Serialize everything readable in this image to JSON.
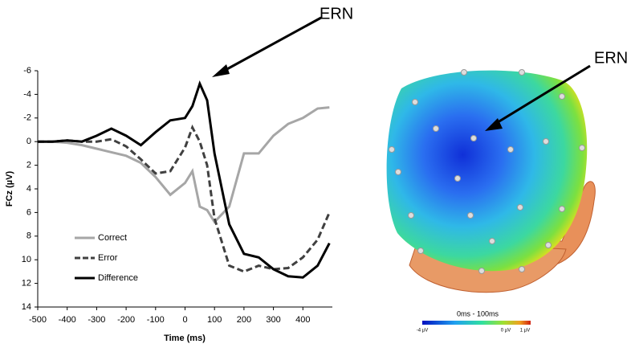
{
  "chart_data": {
    "type": "line",
    "annotation": "ERN",
    "x_label": "Time (ms)",
    "y_label": "FCz (µV)",
    "x": [
      -500,
      -450,
      -400,
      -350,
      -300,
      -250,
      -200,
      -150,
      -100,
      -50,
      0,
      25,
      50,
      75,
      100,
      150,
      200,
      250,
      300,
      350,
      400,
      450,
      490
    ],
    "series": [
      {
        "name": "Correct",
        "color": "#a6a6a6",
        "dash": false,
        "values": [
          0,
          0,
          0.1,
          0.3,
          0.6,
          0.9,
          1.2,
          1.8,
          3,
          4.5,
          3.5,
          2.5,
          5.5,
          5.8,
          6.8,
          5.5,
          1,
          1,
          -0.5,
          -1.5,
          -2,
          -2.8,
          -2.9
        ]
      },
      {
        "name": "Error",
        "color": "#404040",
        "dash": true,
        "values": [
          0,
          0,
          -0.1,
          0,
          0,
          -0.2,
          0.4,
          1.5,
          2.7,
          2.5,
          0.5,
          -1.2,
          0,
          2,
          6.5,
          10.5,
          11,
          10.5,
          10.8,
          10.7,
          9.8,
          8.3,
          6
        ]
      },
      {
        "name": "Difference",
        "color": "#000000",
        "dash": false,
        "values": [
          0,
          0,
          -0.1,
          0,
          -0.5,
          -1.1,
          -0.5,
          0.3,
          -0.8,
          -1.8,
          -2,
          -3,
          -4.9,
          -3.5,
          1,
          7,
          9.5,
          9.8,
          10.8,
          11.4,
          11.5,
          10.5,
          8.6
        ]
      }
    ],
    "xlim": [
      -500,
      500
    ],
    "xticks": [
      -500,
      -400,
      -300,
      -200,
      -100,
      0,
      100,
      200,
      300,
      400
    ],
    "ylim": [
      -6,
      14
    ],
    "yticks": [
      -6,
      -4,
      -2,
      0,
      2,
      4,
      6,
      8,
      10,
      12,
      14
    ],
    "y_inverted": true,
    "grid": false,
    "legend": "lower left"
  },
  "topomap": {
    "annotation": "ERN",
    "time_window": "0ms - 100ms",
    "colorbar_labels": [
      "-4 µV",
      "0 µV",
      "1 µV"
    ]
  }
}
